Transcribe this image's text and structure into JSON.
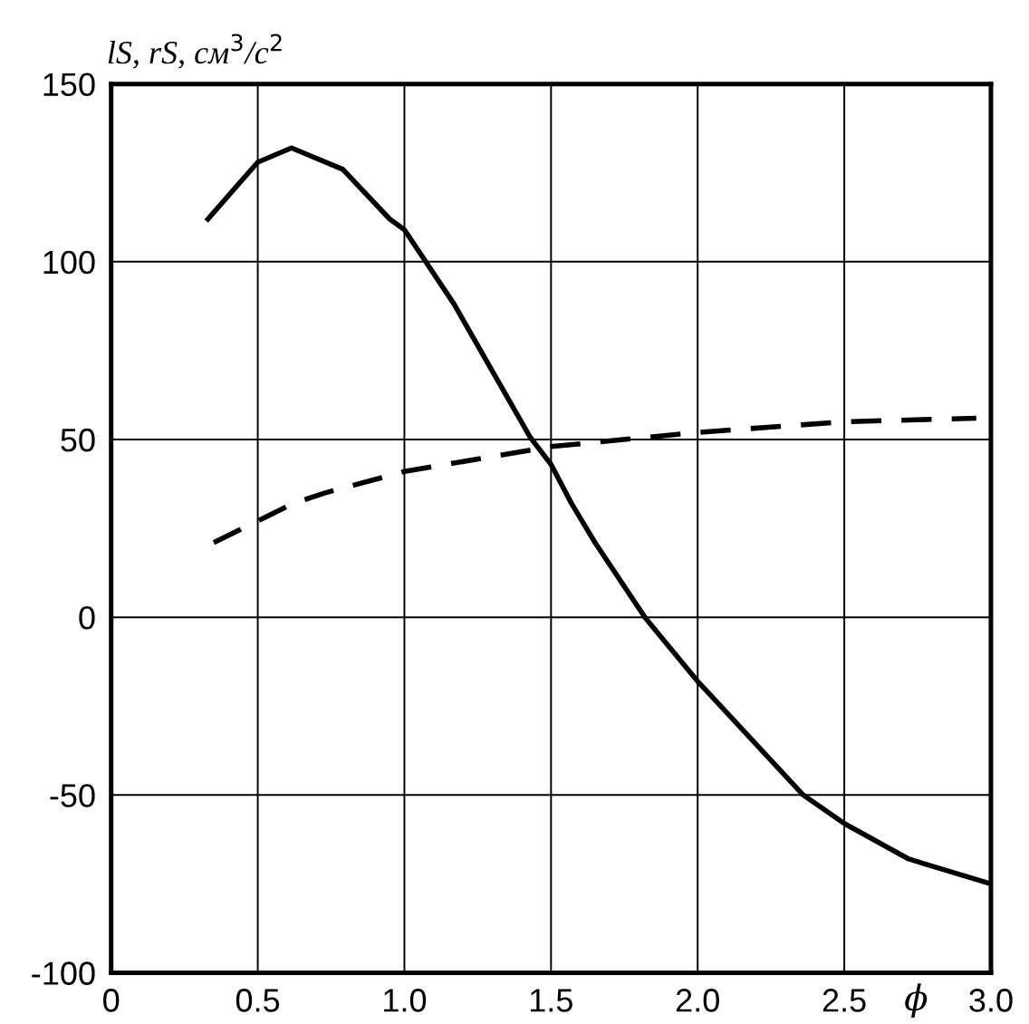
{
  "chart_data": {
    "type": "line",
    "ylabel": "lS, rS, см$^{3}$/с$^{2}$",
    "xlabel": "ϕ",
    "xlim": [
      0,
      3.0
    ],
    "ylim": [
      -100,
      150
    ],
    "xticks": [
      0,
      {
        "value": 0.5,
        "label": "0.5"
      },
      {
        "value": 1.0,
        "label": "1.0"
      },
      {
        "value": 1.5,
        "label": "1.5"
      },
      {
        "value": 2.0,
        "label": "2.0"
      },
      {
        "value": 2.5,
        "label": "2.5"
      },
      {
        "value": 3.0,
        "label": "3.0"
      }
    ],
    "yticks": [
      -100,
      -50,
      0,
      50,
      100,
      150
    ],
    "grid": true,
    "series": [
      {
        "color": "#000000",
        "line_style": "solid",
        "x": [
          0.33,
          0.5,
          0.615,
          0.79,
          0.95,
          1.0,
          1.17,
          1.43,
          1.5,
          1.57,
          1.65,
          1.82,
          2.0,
          2.36,
          2.5,
          2.72,
          3.0
        ],
        "values": [
          112,
          128,
          132,
          126,
          112,
          109,
          88,
          50.5,
          43,
          32,
          21,
          0,
          -18,
          -50,
          -58,
          -68,
          -75
        ]
      },
      {
        "color": "#000000",
        "line_style": "dashed",
        "x": [
          0.35,
          0.62,
          0.73,
          1.0,
          1.5,
          2.0,
          2.5,
          2.95
        ],
        "values": [
          21,
          32,
          35,
          41,
          48,
          52,
          55,
          56
        ]
      }
    ]
  }
}
